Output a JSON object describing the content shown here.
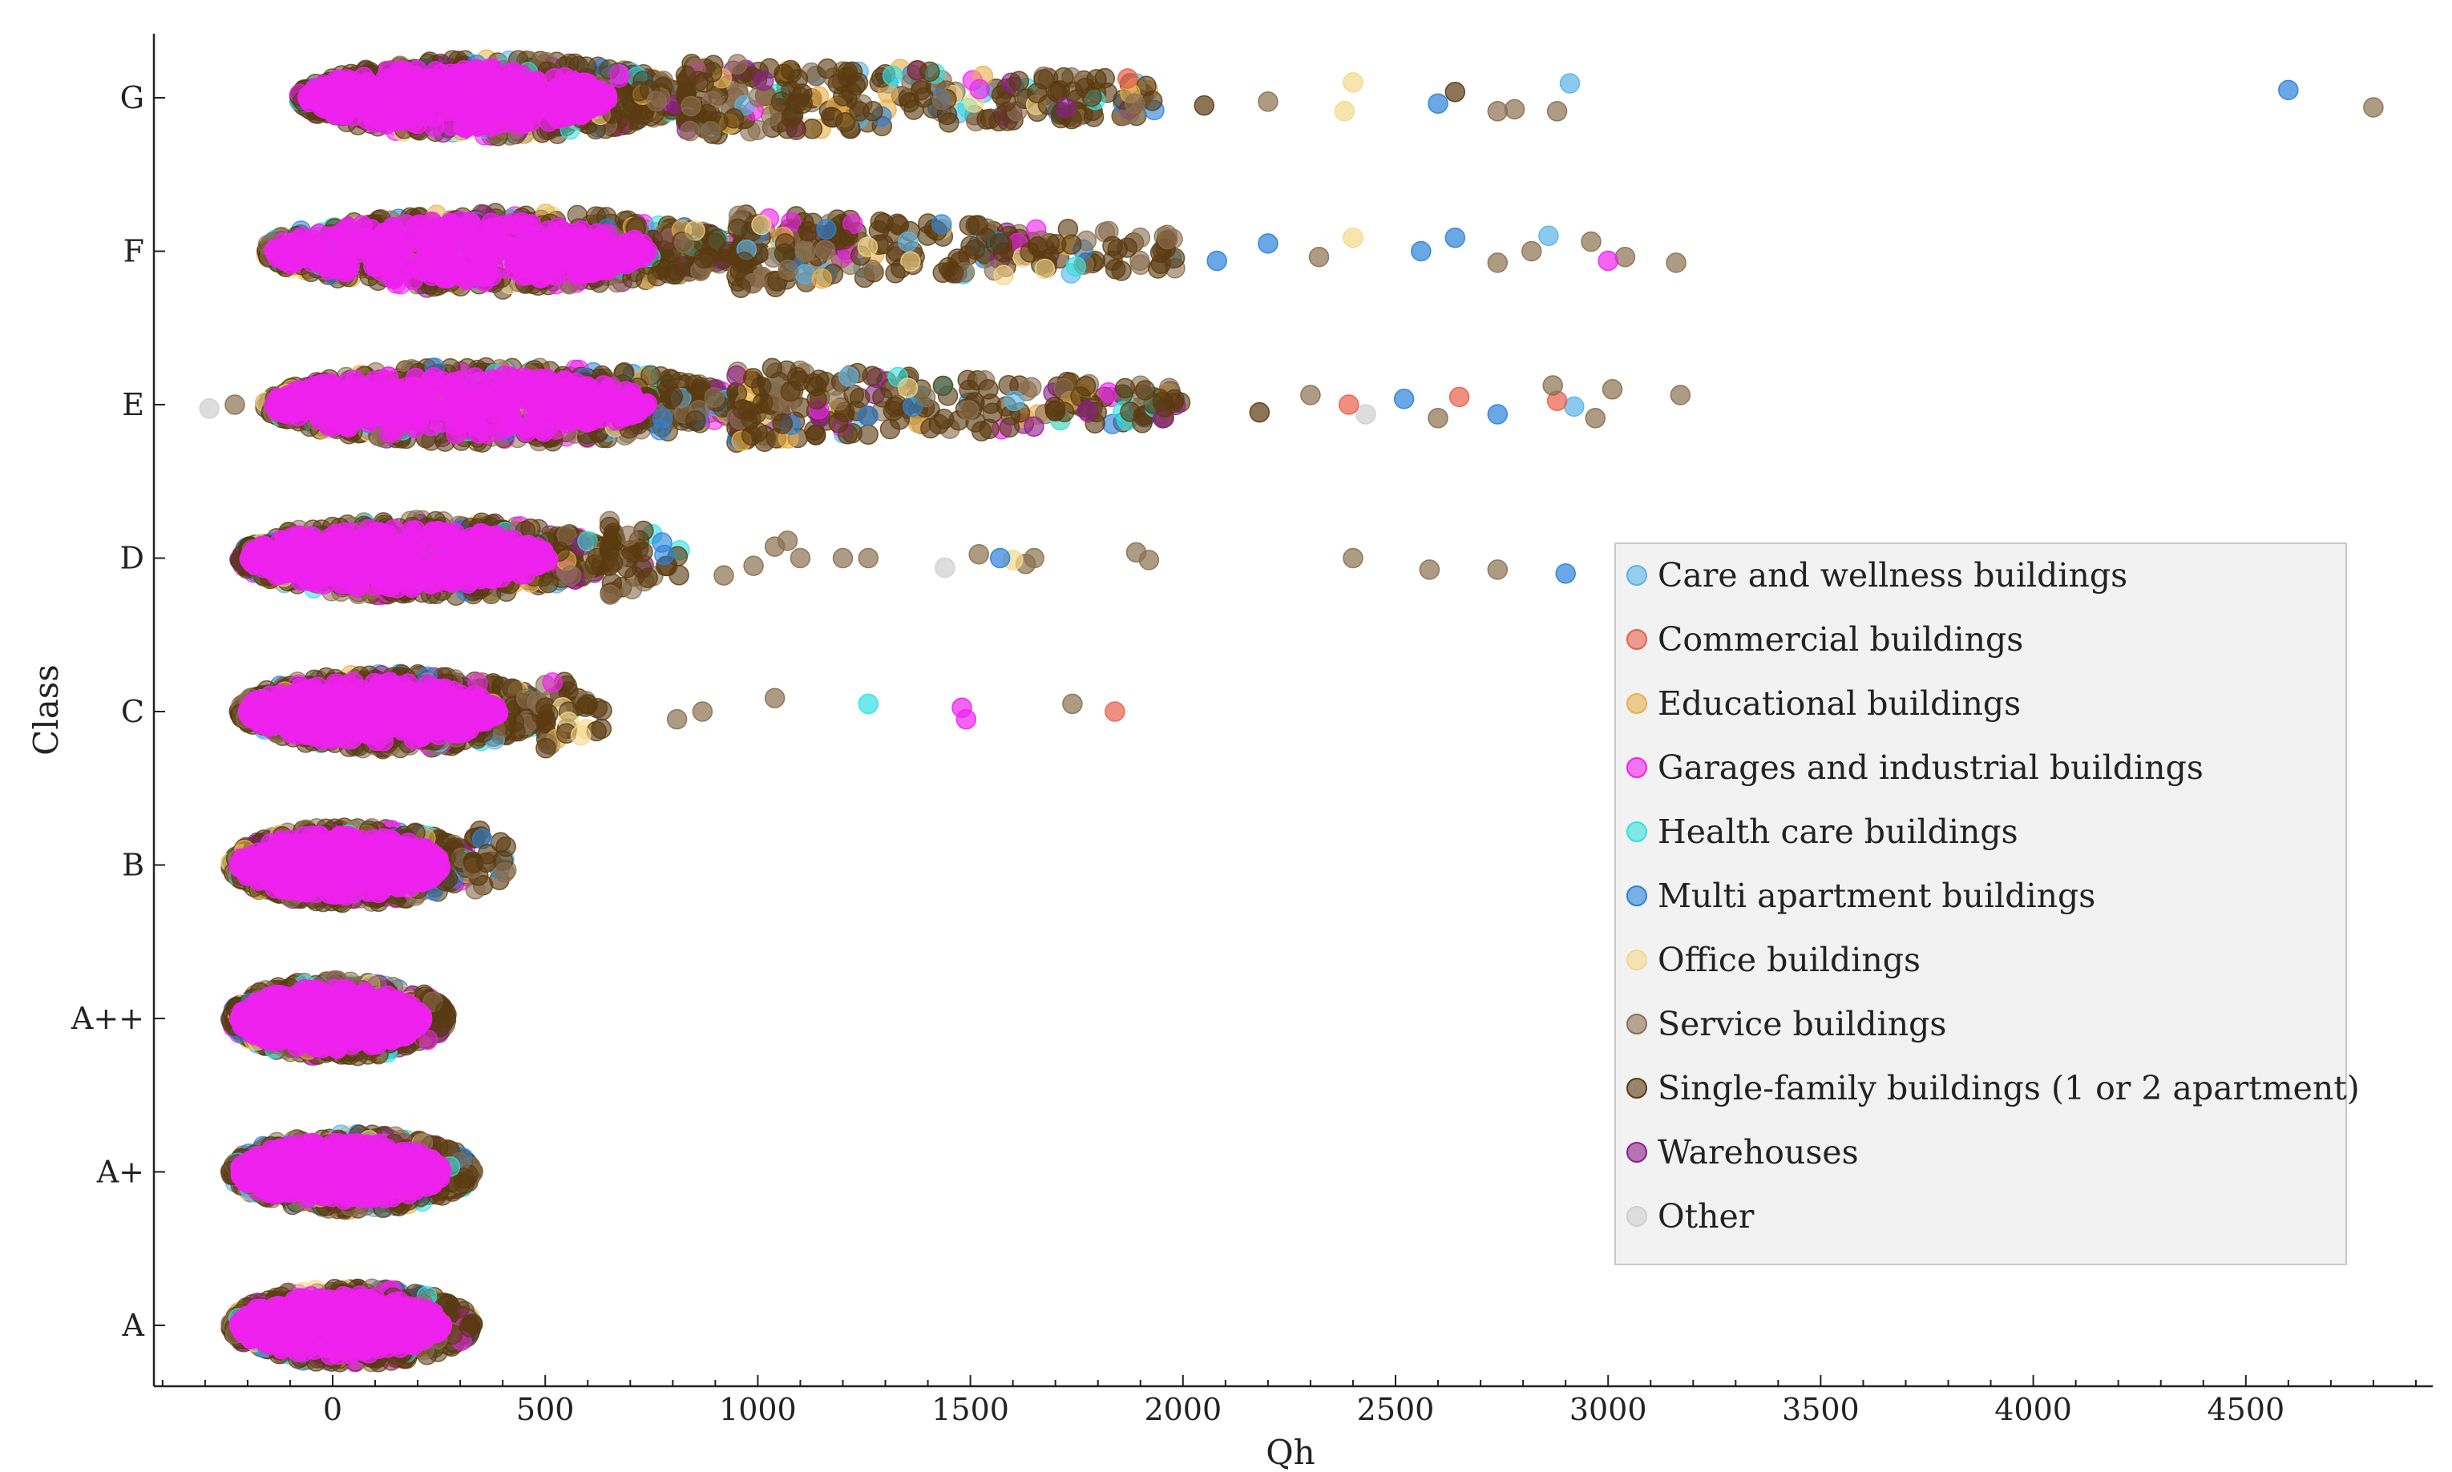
{
  "chart_data": {
    "type": "scatter",
    "title": "",
    "xlabel": "Qh",
    "ylabel": "Class",
    "xlim": [
      -420,
      4950
    ],
    "x_ticks": [
      0,
      500,
      1000,
      1500,
      2000,
      2500,
      3000,
      3500,
      4000,
      4500
    ],
    "x_tick_labels": [
      "0",
      "500",
      "1000",
      "1500",
      "2000",
      "2500",
      "3000",
      "3500",
      "4000",
      "4500"
    ],
    "categories": [
      "G",
      "F",
      "E",
      "D",
      "C",
      "B",
      "A++",
      "A+",
      "A"
    ],
    "grid": false,
    "legend_position": "right",
    "series": [
      {
        "name": "Care and wellness buildings",
        "color": "#5ab4e6"
      },
      {
        "name": "Commercial buildings",
        "color": "#e8604c"
      },
      {
        "name": "Educational buildings",
        "color": "#e8b04c"
      },
      {
        "name": "Garages and industrial buildings",
        "color": "#ee22ee"
      },
      {
        "name": "Health care buildings",
        "color": "#33e0e0"
      },
      {
        "name": "Multi apartment buildings",
        "color": "#2b82d9"
      },
      {
        "name": "Office buildings",
        "color": "#f5d88a"
      },
      {
        "name": "Service buildings",
        "color": "#8a7050"
      },
      {
        "name": "Single-family buildings (1 or 2 apartment)",
        "color": "#5a3a10"
      },
      {
        "name": "Warehouses",
        "color": "#8b1f8b"
      },
      {
        "name": "Other",
        "color": "#cfcfcf"
      }
    ],
    "class_ranges": [
      {
        "class": "G",
        "core_min": -80,
        "core_max": 1950,
        "dense_max": 830
      },
      {
        "class": "F",
        "core_min": -160,
        "core_max": 2000,
        "dense_max": 950
      },
      {
        "class": "E",
        "core_min": -160,
        "core_max": 2000,
        "dense_max": 950
      },
      {
        "class": "D",
        "core_min": -220,
        "core_max": 820,
        "dense_max": 650
      },
      {
        "class": "C",
        "core_min": -220,
        "core_max": 640,
        "dense_max": 500
      },
      {
        "class": "B",
        "core_min": -240,
        "core_max": 420,
        "dense_max": 330
      },
      {
        "class": "A++",
        "core_min": -240,
        "core_max": 270,
        "dense_max": 270
      },
      {
        "class": "A+",
        "core_min": -240,
        "core_max": 330,
        "dense_max": 330
      },
      {
        "class": "A",
        "core_min": -240,
        "core_max": 330,
        "dense_max": 330
      }
    ],
    "outliers": [
      {
        "class": "G",
        "x": 4600,
        "dy": -0.08,
        "series": "Multi apartment buildings"
      },
      {
        "class": "G",
        "x": 4800,
        "dy": 0.1,
        "series": "Service buildings"
      },
      {
        "class": "G",
        "x": 2910,
        "dy": -0.15,
        "series": "Care and wellness buildings"
      },
      {
        "class": "G",
        "x": 2880,
        "dy": 0.14,
        "series": "Service buildings"
      },
      {
        "class": "G",
        "x": 2780,
        "dy": 0.12,
        "series": "Service buildings"
      },
      {
        "class": "G",
        "x": 2740,
        "dy": 0.14,
        "series": "Service buildings"
      },
      {
        "class": "G",
        "x": 2640,
        "dy": -0.06,
        "series": "Single-family buildings (1 or 2 apartment)"
      },
      {
        "class": "G",
        "x": 2600,
        "dy": 0.06,
        "series": "Multi apartment buildings"
      },
      {
        "class": "G",
        "x": 2400,
        "dy": -0.16,
        "series": "Office buildings"
      },
      {
        "class": "G",
        "x": 2380,
        "dy": 0.14,
        "series": "Office buildings"
      },
      {
        "class": "G",
        "x": 2200,
        "dy": 0.04,
        "series": "Service buildings"
      },
      {
        "class": "G",
        "x": 2050,
        "dy": 0.08,
        "series": "Single-family buildings (1 or 2 apartment)"
      },
      {
        "class": "G",
        "x": 1870,
        "dy": -0.2,
        "series": "Commercial buildings"
      },
      {
        "class": "F",
        "x": 3160,
        "dy": 0.12,
        "series": "Service buildings"
      },
      {
        "class": "F",
        "x": 3040,
        "dy": 0.06,
        "series": "Service buildings"
      },
      {
        "class": "F",
        "x": 3000,
        "dy": 0.1,
        "series": "Garages and industrial buildings"
      },
      {
        "class": "F",
        "x": 2960,
        "dy": -0.1,
        "series": "Service buildings"
      },
      {
        "class": "F",
        "x": 2860,
        "dy": -0.16,
        "series": "Care and wellness buildings"
      },
      {
        "class": "F",
        "x": 2820,
        "dy": 0.0,
        "series": "Service buildings"
      },
      {
        "class": "F",
        "x": 2740,
        "dy": 0.12,
        "series": "Service buildings"
      },
      {
        "class": "F",
        "x": 2640,
        "dy": -0.14,
        "series": "Multi apartment buildings"
      },
      {
        "class": "F",
        "x": 2560,
        "dy": 0.0,
        "series": "Multi apartment buildings"
      },
      {
        "class": "F",
        "x": 2400,
        "dy": -0.14,
        "series": "Office buildings"
      },
      {
        "class": "F",
        "x": 2320,
        "dy": 0.06,
        "series": "Service buildings"
      },
      {
        "class": "F",
        "x": 2200,
        "dy": -0.08,
        "series": "Multi apartment buildings"
      },
      {
        "class": "F",
        "x": 2080,
        "dy": 0.1,
        "series": "Multi apartment buildings"
      },
      {
        "class": "E",
        "x": -290,
        "dy": 0.04,
        "series": "Other"
      },
      {
        "class": "E",
        "x": -230,
        "dy": 0.0,
        "series": "Service buildings"
      },
      {
        "class": "E",
        "x": 3170,
        "dy": -0.1,
        "series": "Service buildings"
      },
      {
        "class": "E",
        "x": 3010,
        "dy": -0.16,
        "series": "Service buildings"
      },
      {
        "class": "E",
        "x": 2970,
        "dy": 0.14,
        "series": "Service buildings"
      },
      {
        "class": "E",
        "x": 2920,
        "dy": 0.02,
        "series": "Care and wellness buildings"
      },
      {
        "class": "E",
        "x": 2880,
        "dy": -0.04,
        "series": "Commercial buildings"
      },
      {
        "class": "E",
        "x": 2870,
        "dy": -0.2,
        "series": "Service buildings"
      },
      {
        "class": "E",
        "x": 2740,
        "dy": 0.1,
        "series": "Multi apartment buildings"
      },
      {
        "class": "E",
        "x": 2650,
        "dy": -0.08,
        "series": "Commercial buildings"
      },
      {
        "class": "E",
        "x": 2600,
        "dy": 0.14,
        "series": "Service buildings"
      },
      {
        "class": "E",
        "x": 2520,
        "dy": -0.06,
        "series": "Multi apartment buildings"
      },
      {
        "class": "E",
        "x": 2430,
        "dy": 0.1,
        "series": "Other"
      },
      {
        "class": "E",
        "x": 2390,
        "dy": 0.0,
        "series": "Commercial buildings"
      },
      {
        "class": "E",
        "x": 2300,
        "dy": -0.1,
        "series": "Service buildings"
      },
      {
        "class": "E",
        "x": 2180,
        "dy": 0.08,
        "series": "Single-family buildings (1 or 2 apartment)"
      },
      {
        "class": "D",
        "x": 2900,
        "dy": 0.16,
        "series": "Multi apartment buildings"
      },
      {
        "class": "D",
        "x": 2740,
        "dy": 0.12,
        "series": "Service buildings"
      },
      {
        "class": "D",
        "x": 2580,
        "dy": 0.12,
        "series": "Service buildings"
      },
      {
        "class": "D",
        "x": 2400,
        "dy": 0.0,
        "series": "Service buildings"
      },
      {
        "class": "D",
        "x": 1920,
        "dy": 0.02,
        "series": "Service buildings"
      },
      {
        "class": "D",
        "x": 1890,
        "dy": -0.06,
        "series": "Service buildings"
      },
      {
        "class": "D",
        "x": 1650,
        "dy": 0.0,
        "series": "Service buildings"
      },
      {
        "class": "D",
        "x": 1630,
        "dy": 0.06,
        "series": "Service buildings"
      },
      {
        "class": "D",
        "x": 1600,
        "dy": 0.02,
        "series": "Office buildings"
      },
      {
        "class": "D",
        "x": 1570,
        "dy": 0.0,
        "series": "Multi apartment buildings"
      },
      {
        "class": "D",
        "x": 1520,
        "dy": -0.04,
        "series": "Service buildings"
      },
      {
        "class": "D",
        "x": 1440,
        "dy": 0.1,
        "series": "Other"
      },
      {
        "class": "D",
        "x": 1260,
        "dy": 0.0,
        "series": "Service buildings"
      },
      {
        "class": "D",
        "x": 1200,
        "dy": 0.0,
        "series": "Service buildings"
      },
      {
        "class": "D",
        "x": 1100,
        "dy": 0.0,
        "series": "Service buildings"
      },
      {
        "class": "D",
        "x": 1070,
        "dy": -0.18,
        "series": "Service buildings"
      },
      {
        "class": "D",
        "x": 1040,
        "dy": -0.12,
        "series": "Service buildings"
      },
      {
        "class": "D",
        "x": 990,
        "dy": 0.08,
        "series": "Service buildings"
      },
      {
        "class": "D",
        "x": 920,
        "dy": 0.18,
        "series": "Service buildings"
      },
      {
        "class": "C",
        "x": 1840,
        "dy": 0.0,
        "series": "Commercial buildings"
      },
      {
        "class": "C",
        "x": 1740,
        "dy": -0.08,
        "series": "Service buildings"
      },
      {
        "class": "C",
        "x": 1490,
        "dy": 0.08,
        "series": "Garages and industrial buildings"
      },
      {
        "class": "C",
        "x": 1480,
        "dy": -0.04,
        "series": "Garages and industrial buildings"
      },
      {
        "class": "C",
        "x": 1260,
        "dy": -0.08,
        "series": "Health care buildings"
      },
      {
        "class": "C",
        "x": 1040,
        "dy": -0.14,
        "series": "Service buildings"
      },
      {
        "class": "C",
        "x": 870,
        "dy": 0.0,
        "series": "Service buildings"
      },
      {
        "class": "C",
        "x": 810,
        "dy": 0.08,
        "series": "Service buildings"
      }
    ]
  }
}
